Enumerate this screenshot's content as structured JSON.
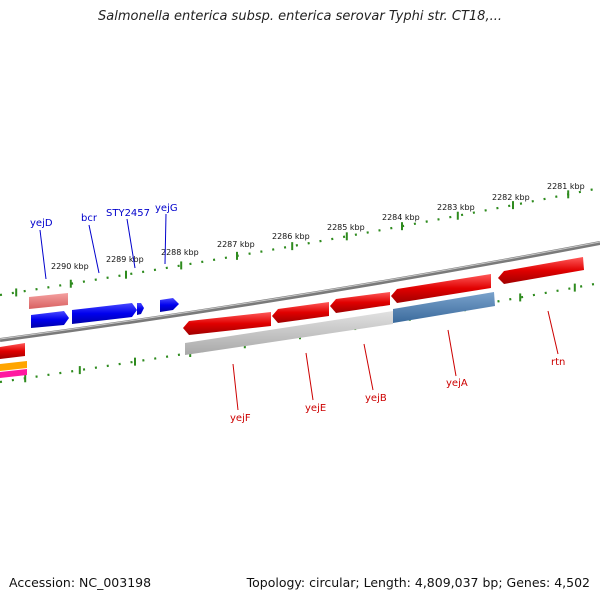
{
  "title": "Salmonella enterica subsp. enterica serovar Typhi str. CT18,...",
  "footer": {
    "accession": "Accession: NC_003198",
    "summary": "Topology: circular; Length: 4,809,037 bp; Genes: 4,502"
  },
  "colors": {
    "forward_gene": "#0000ee",
    "reverse_gene": "#e00000",
    "pseudo_pink": "#e87878",
    "grey_region": "#b8b8b8",
    "blue_region": "#4a7cb0",
    "tick_green": "#2e8b1e",
    "backbone": "#808080",
    "orange_gene": "#ffa500",
    "magenta_gene": "#ff1aa0"
  },
  "scale": {
    "unit": "kbp",
    "labels": [
      {
        "text": "2281 kbp"
      },
      {
        "text": "2282 kbp"
      },
      {
        "text": "2283 kbp"
      },
      {
        "text": "2284 kbp"
      },
      {
        "text": "2285 kbp"
      },
      {
        "text": "2286 kbp"
      },
      {
        "text": "2287 kbp"
      },
      {
        "text": "2288 kbp"
      },
      {
        "text": "2289 kbp"
      },
      {
        "text": "2290 kbp"
      }
    ]
  },
  "genes_forward": [
    {
      "name": "yejD"
    },
    {
      "name": "bcr"
    },
    {
      "name": "STY2457"
    },
    {
      "name": "yejG"
    }
  ],
  "genes_reverse": [
    {
      "name": "yejF"
    },
    {
      "name": "yejE"
    },
    {
      "name": "yejB"
    },
    {
      "name": "yejA"
    },
    {
      "name": "rtn"
    }
  ]
}
